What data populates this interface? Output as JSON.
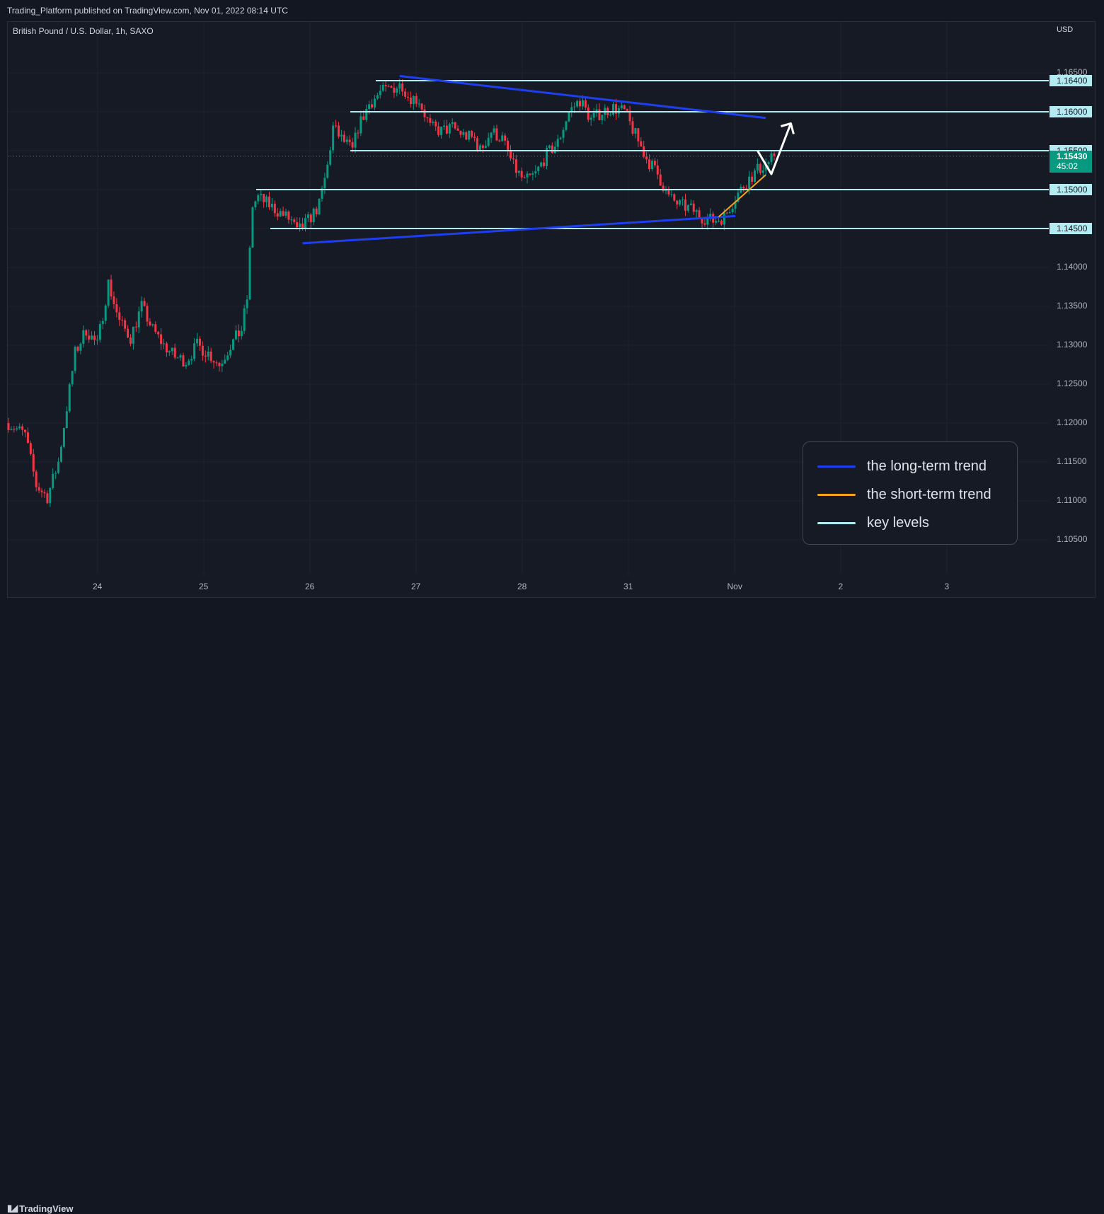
{
  "header": {
    "published": "Trading_Platform published on TradingView.com, Nov 01, 2022 08:14 UTC"
  },
  "chart": {
    "symbol": "British Pound / U.S. Dollar, 1h, SAXO",
    "currency": "USD",
    "last_price": "1.15430",
    "countdown": "45:02"
  },
  "footer": {
    "brand": "TradingView"
  },
  "colors": {
    "background": "#161a25",
    "up_candle": "#089981",
    "down_candle": "#f23645",
    "long_term_trend": "#1e3ff0",
    "short_term_trend": "#f7a21b",
    "key_level": "#b2ebf2",
    "arrow": "#ffffff"
  },
  "legend": {
    "items": [
      {
        "label": "the long-term trend",
        "color": "#1e3ff0"
      },
      {
        "label": "the short-term trend",
        "color": "#f7a21b"
      },
      {
        "label": "key levels",
        "color": "#b2ebf2"
      }
    ]
  },
  "chart_data": {
    "type": "candlestick",
    "title": "British Pound / U.S. Dollar, 1h, SAXO",
    "y_unit": "USD",
    "ylim": [
      1.1005,
      1.1665
    ],
    "x_ticks": [
      "24",
      "25",
      "26",
      "27",
      "28",
      "31",
      "Nov",
      "2",
      "3"
    ],
    "y_ticks": [
      "1.16500",
      "1.16000",
      "1.15500",
      "1.15000",
      "1.14500",
      "1.14000",
      "1.13500",
      "1.13000",
      "1.12500",
      "1.12000",
      "1.11500",
      "1.11000",
      "1.10500"
    ],
    "key_levels": [
      {
        "label": "1.16400",
        "value": 1.164
      },
      {
        "label": "1.16000",
        "value": 1.16
      },
      {
        "label": "1.15500",
        "value": 1.155
      },
      {
        "label": "1.15000",
        "value": 1.15
      },
      {
        "label": "1.14500",
        "value": 1.145
      }
    ],
    "last_price": 1.1543,
    "price_path": [
      [
        0,
        1.12
      ],
      [
        6,
        1.1185
      ],
      [
        10,
        1.112
      ],
      [
        14,
        1.1105
      ],
      [
        18,
        1.115
      ],
      [
        24,
        1.129
      ],
      [
        28,
        1.132
      ],
      [
        32,
        1.13
      ],
      [
        36,
        1.138
      ],
      [
        40,
        1.133
      ],
      [
        44,
        1.131
      ],
      [
        48,
        1.135
      ],
      [
        52,
        1.132
      ],
      [
        56,
        1.13
      ],
      [
        60,
        1.1285
      ],
      [
        64,
        1.128
      ],
      [
        68,
        1.13
      ],
      [
        72,
        1.129
      ],
      [
        76,
        1.1275
      ],
      [
        80,
        1.13
      ],
      [
        84,
        1.132
      ],
      [
        86,
        1.136
      ],
      [
        88,
        1.148
      ],
      [
        90,
        1.149
      ],
      [
        94,
        1.148
      ],
      [
        98,
        1.147
      ],
      [
        102,
        1.146
      ],
      [
        104,
        1.1445
      ],
      [
        108,
        1.146
      ],
      [
        112,
        1.148
      ],
      [
        115,
        1.153
      ],
      [
        117,
        1.158
      ],
      [
        120,
        1.1565
      ],
      [
        124,
        1.155
      ],
      [
        126,
        1.158
      ],
      [
        130,
        1.161
      ],
      [
        134,
        1.1625
      ],
      [
        138,
        1.163
      ],
      [
        142,
        1.1635
      ],
      [
        144,
        1.162
      ],
      [
        148,
        1.1615
      ],
      [
        152,
        1.158
      ],
      [
        156,
        1.1575
      ],
      [
        160,
        1.158
      ],
      [
        164,
        1.157
      ],
      [
        168,
        1.1565
      ],
      [
        170,
        1.155
      ],
      [
        174,
        1.1575
      ],
      [
        178,
        1.1565
      ],
      [
        182,
        1.153
      ],
      [
        186,
        1.151
      ],
      [
        190,
        1.152
      ],
      [
        194,
        1.1545
      ],
      [
        198,
        1.156
      ],
      [
        202,
        1.16
      ],
      [
        206,
        1.1615
      ],
      [
        210,
        1.159
      ],
      [
        214,
        1.16
      ],
      [
        218,
        1.1605
      ],
      [
        222,
        1.16
      ],
      [
        226,
        1.157
      ],
      [
        230,
        1.154
      ],
      [
        234,
        1.152
      ],
      [
        238,
        1.149
      ],
      [
        242,
        1.148
      ],
      [
        246,
        1.1475
      ],
      [
        250,
        1.1465
      ],
      [
        254,
        1.146
      ],
      [
        258,
        1.1465
      ],
      [
        262,
        1.149
      ],
      [
        266,
        1.151
      ],
      [
        270,
        1.1525
      ],
      [
        274,
        1.1535
      ],
      [
        276,
        1.1543
      ]
    ],
    "long_term_trend": {
      "upper": [
        [
          141,
          1.1646
        ],
        [
          273,
          1.1592
        ]
      ],
      "lower": [
        [
          106,
          1.1431
        ],
        [
          262,
          1.1466
        ]
      ]
    },
    "short_term_trend": [
      [
        256,
        1.1465
      ],
      [
        273,
        1.1519
      ]
    ],
    "projection": [
      [
        270,
        1.155
      ],
      [
        275,
        1.152
      ],
      [
        282,
        1.1585
      ]
    ]
  }
}
